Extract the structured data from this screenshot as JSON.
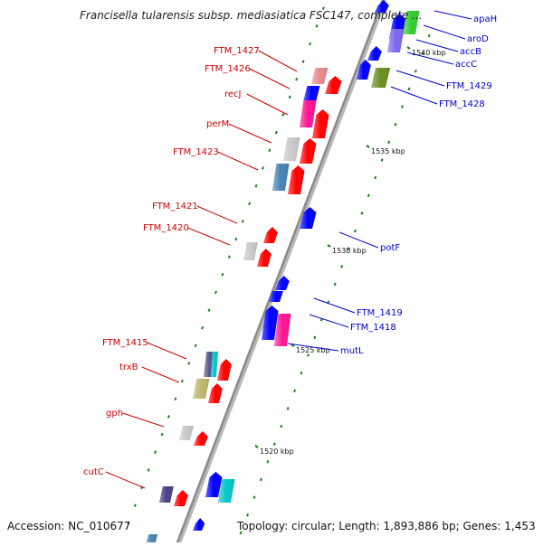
{
  "title": "Francisella tularensis subsp. mediasiatica FSC147, complete ...",
  "footer": {
    "accession": "Accession: NC_010677",
    "summary": "Topology: circular; Length: 1,893,886 bp; Genes: 1,453"
  },
  "colors": {
    "left_label": "#cc0000",
    "right_label": "#0000cc",
    "backbone": "#8a8a8a",
    "tick": "#1a7a1a"
  },
  "scale_labels": [
    "1540 kbp",
    "1535 kbp",
    "1530 kbp",
    "1525 kbp",
    "1520 kbp"
  ],
  "left_genes": [
    "FTM_1427",
    "FTM_1426",
    "recJ",
    "perM",
    "FTM_1423",
    "FTM_1421",
    "FTM_1420",
    "FTM_1415",
    "trxB",
    "gph",
    "cutC"
  ],
  "right_genes": [
    "apaH",
    "aroD",
    "accB",
    "accC",
    "FTM_1429",
    "FTM_1428",
    "potF",
    "FTM_1419",
    "FTM_1418",
    "mutL"
  ]
}
